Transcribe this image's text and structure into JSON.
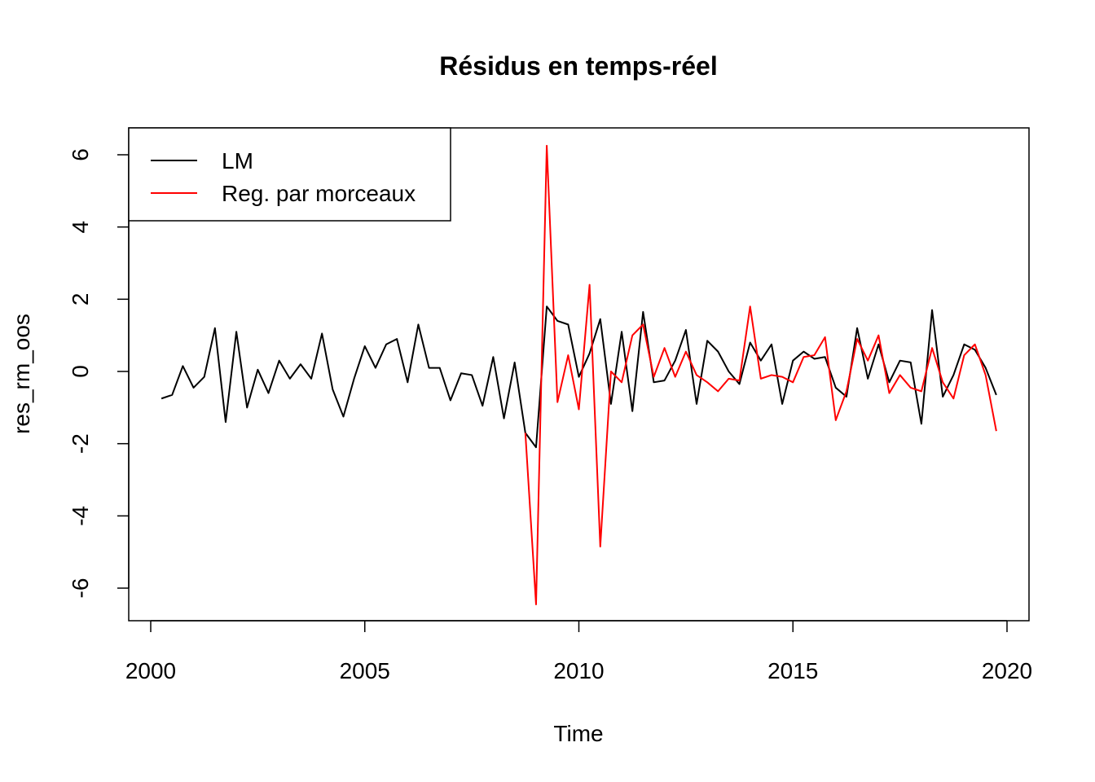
{
  "chart_data": {
    "type": "line",
    "title": "Résidus en temps-réel",
    "xlabel": "Time",
    "ylabel": "res_rm_oos",
    "xlim": [
      1999.5,
      2020.5
    ],
    "ylim": [
      -6.9,
      6.8
    ],
    "x_ticks": [
      2000,
      2005,
      2010,
      2015,
      2020
    ],
    "y_ticks": [
      -6,
      -4,
      -2,
      0,
      2,
      4,
      6
    ],
    "x_tick_labels": [
      "2000",
      "2005",
      "2010",
      "2015",
      "2020"
    ],
    "y_tick_labels": [
      "-6",
      "-4",
      "-2",
      "0",
      "2",
      "4",
      "6"
    ],
    "grid": false,
    "legend": {
      "position": "top-left"
    },
    "series": [
      {
        "name": "LM",
        "color": "#000000",
        "x_start": 2000.25,
        "x_step": 0.25,
        "values": [
          -0.75,
          -0.65,
          0.15,
          -0.45,
          -0.15,
          1.2,
          -1.4,
          1.1,
          -1.0,
          0.05,
          -0.6,
          0.3,
          -0.2,
          0.2,
          -0.2,
          1.05,
          -0.5,
          -1.25,
          -0.2,
          0.7,
          0.1,
          0.75,
          0.9,
          -0.3,
          1.3,
          0.1,
          0.1,
          -0.8,
          -0.05,
          -0.1,
          -0.95,
          0.4,
          -1.3,
          0.25,
          -1.7,
          -2.1,
          1.8,
          1.4,
          1.3,
          -0.15,
          0.5,
          1.45,
          -0.9,
          1.1,
          -1.1,
          1.65,
          -0.3,
          -0.25,
          0.3,
          1.15,
          -0.9,
          0.85,
          0.55,
          0.0,
          -0.35,
          0.8,
          0.3,
          0.75,
          -0.9,
          0.3,
          0.55,
          0.35,
          0.4,
          -0.45,
          -0.7,
          1.2,
          -0.2,
          0.75,
          -0.3,
          0.3,
          0.25,
          -1.45,
          1.7,
          -0.7,
          -0.1,
          0.75,
          0.6,
          0.1,
          -0.65
        ]
      },
      {
        "name": "Reg. par morceaux",
        "color": "#ff0000",
        "x_start": 2008.75,
        "x_step": 0.25,
        "values": [
          -1.7,
          -6.45,
          6.25,
          -0.85,
          0.45,
          -1.05,
          2.4,
          -4.85,
          0.0,
          -0.3,
          1.0,
          1.3,
          -0.15,
          0.65,
          -0.15,
          0.55,
          -0.1,
          -0.3,
          -0.55,
          -0.2,
          -0.25,
          1.8,
          -0.2,
          -0.1,
          -0.15,
          -0.3,
          0.4,
          0.45,
          0.95,
          -1.35,
          -0.55,
          0.9,
          0.3,
          1.0,
          -0.6,
          -0.1,
          -0.45,
          -0.55,
          0.65,
          -0.3,
          -0.75,
          0.45,
          0.75,
          -0.1,
          -1.65
        ]
      }
    ]
  }
}
